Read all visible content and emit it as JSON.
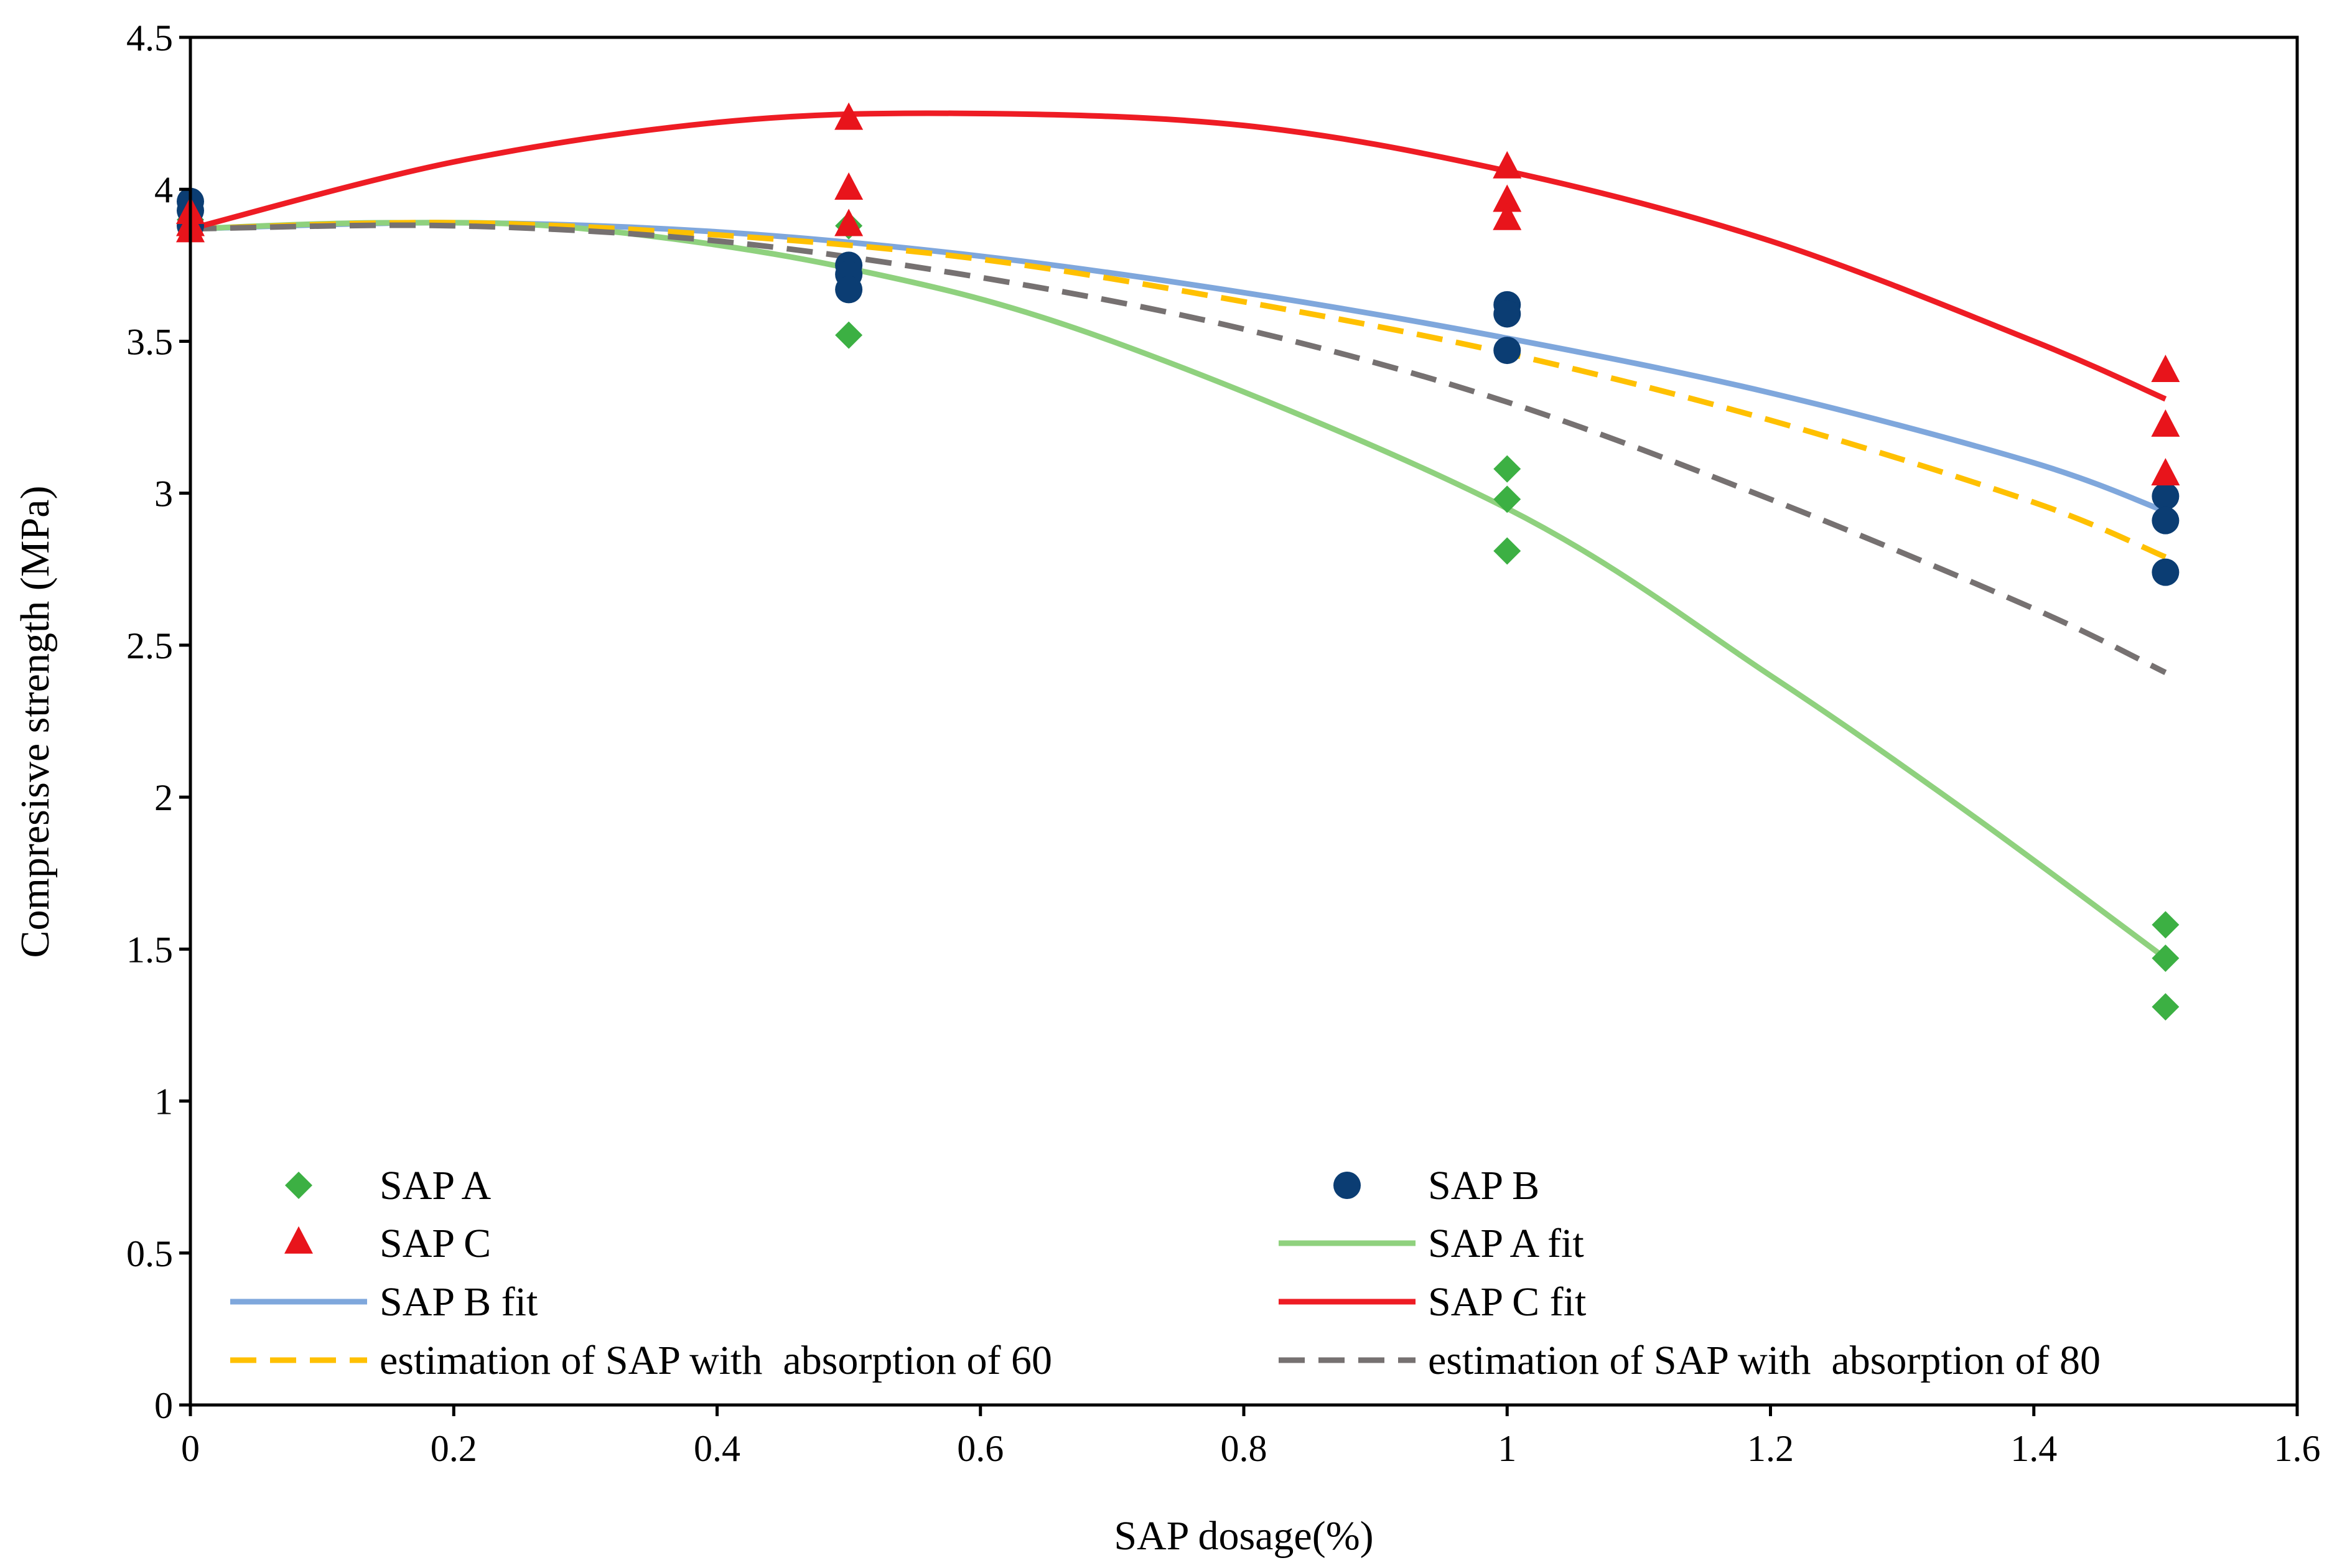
{
  "chart_data": {
    "type": "scatter",
    "title": "",
    "xlabel": "SAP dosage(%)",
    "ylabel": "Compresisve strength (MPa)",
    "xlim": [
      0,
      1.6
    ],
    "ylim": [
      0,
      4.5
    ],
    "x_ticks": [
      0,
      0.2,
      0.4,
      0.6,
      0.8,
      1,
      1.2,
      1.4,
      1.6
    ],
    "x_tick_labels": [
      "0",
      "0.2",
      "0.4",
      "0.6",
      "0.8",
      "1",
      "1.2",
      "1.4",
      "1.6"
    ],
    "y_ticks": [
      0,
      0.5,
      1,
      1.5,
      2,
      2.5,
      3,
      3.5,
      4,
      4.5
    ],
    "y_tick_labels": [
      "0",
      "0.5",
      "1",
      "1.5",
      "2",
      "2.5",
      "3",
      "3.5",
      "4",
      "4.5"
    ],
    "grid": false,
    "legend_position": "bottom, two columns",
    "series": [
      {
        "name": "SAP A",
        "kind": "points",
        "marker": "diamond",
        "color": "#3cb043",
        "points": [
          [
            0,
            3.93
          ],
          [
            0,
            3.9
          ],
          [
            0,
            3.88
          ],
          [
            0.5,
            3.88
          ],
          [
            0.5,
            3.75
          ],
          [
            0.5,
            3.52
          ],
          [
            1,
            3.08
          ],
          [
            1,
            2.98
          ],
          [
            1,
            2.81
          ],
          [
            1.5,
            1.58
          ],
          [
            1.5,
            1.47
          ],
          [
            1.5,
            1.31
          ]
        ]
      },
      {
        "name": "SAP B",
        "kind": "points",
        "marker": "circle",
        "color": "#0b3d73",
        "points": [
          [
            0,
            3.96
          ],
          [
            0,
            3.93
          ],
          [
            0,
            3.88
          ],
          [
            0.5,
            3.75
          ],
          [
            0.5,
            3.72
          ],
          [
            0.5,
            3.67
          ],
          [
            1,
            3.62
          ],
          [
            1,
            3.59
          ],
          [
            1,
            3.47
          ],
          [
            1.5,
            2.99
          ],
          [
            1.5,
            2.91
          ],
          [
            1.5,
            2.74
          ]
        ]
      },
      {
        "name": "SAP C",
        "kind": "points",
        "marker": "triangle",
        "color": "#e8141b",
        "points": [
          [
            0,
            3.92
          ],
          [
            0,
            3.88
          ],
          [
            0,
            3.86
          ],
          [
            0.5,
            4.23
          ],
          [
            0.5,
            4.0
          ],
          [
            0.5,
            3.88
          ],
          [
            1,
            4.07
          ],
          [
            1,
            3.96
          ],
          [
            1,
            3.9
          ],
          [
            1.5,
            3.4
          ],
          [
            1.5,
            3.22
          ],
          [
            1.5,
            3.06
          ]
        ]
      },
      {
        "name": "SAP A fit",
        "kind": "line",
        "style": "solid",
        "color": "#8fd17e",
        "x": [
          0,
          0.15,
          0.3,
          0.5,
          0.7,
          1.0,
          1.2,
          1.35,
          1.5
        ],
        "values": [
          3.87,
          3.89,
          3.87,
          3.74,
          3.5,
          2.95,
          2.4,
          1.95,
          1.47
        ]
      },
      {
        "name": "SAP B fit",
        "kind": "line",
        "style": "solid",
        "color": "#7fa7dc",
        "x": [
          0,
          0.2,
          0.4,
          0.6,
          0.8,
          1.0,
          1.2,
          1.4,
          1.5
        ],
        "values": [
          3.87,
          3.89,
          3.86,
          3.78,
          3.66,
          3.51,
          3.33,
          3.1,
          2.94
        ]
      },
      {
        "name": "SAP C fit",
        "kind": "line",
        "style": "solid",
        "color": "#ee1c24",
        "x": [
          0,
          0.2,
          0.4,
          0.58,
          0.8,
          1.0,
          1.2,
          1.4,
          1.5
        ],
        "values": [
          3.87,
          4.09,
          4.22,
          4.25,
          4.21,
          4.06,
          3.83,
          3.5,
          3.31
        ]
      },
      {
        "name": "estimation of SAP with  absorption of 60",
        "kind": "line",
        "style": "dashed",
        "color": "#ffc000",
        "x": [
          0,
          0.2,
          0.4,
          0.6,
          0.8,
          1.0,
          1.2,
          1.4,
          1.5
        ],
        "values": [
          3.87,
          3.89,
          3.85,
          3.77,
          3.63,
          3.46,
          3.24,
          2.97,
          2.79
        ]
      },
      {
        "name": "estimation of SAP with  absorption of 80",
        "kind": "line",
        "style": "dashed",
        "color": "#767171",
        "x": [
          0,
          0.2,
          0.4,
          0.6,
          0.8,
          1.0,
          1.2,
          1.4,
          1.5
        ],
        "values": [
          3.87,
          3.88,
          3.83,
          3.71,
          3.54,
          3.3,
          2.98,
          2.62,
          2.41
        ]
      }
    ]
  }
}
